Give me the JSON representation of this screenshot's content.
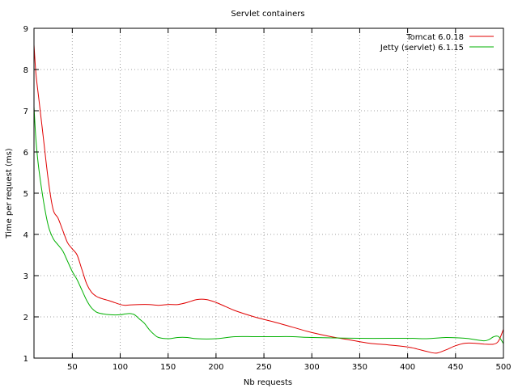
{
  "chart_data": {
    "type": "line",
    "title": "Servlet containers",
    "xlabel": "Nb requests",
    "ylabel": "Time per request (ms)",
    "xlim": [
      10,
      500
    ],
    "ylim": [
      1,
      9
    ],
    "xticks": [
      50,
      100,
      150,
      200,
      250,
      300,
      350,
      400,
      450,
      500
    ],
    "yticks": [
      1,
      2,
      3,
      4,
      5,
      6,
      7,
      8,
      9
    ],
    "grid": true,
    "legend_position": "top-right",
    "series": [
      {
        "name": "Tomcat 6.0.18",
        "color": "#e00000",
        "x": [
          10,
          12,
          15,
          20,
          25,
          30,
          35,
          40,
          45,
          50,
          55,
          60,
          65,
          70,
          75,
          80,
          90,
          100,
          105,
          110,
          120,
          130,
          140,
          150,
          160,
          170,
          180,
          190,
          200,
          210,
          220,
          240,
          260,
          280,
          300,
          320,
          340,
          360,
          380,
          400,
          410,
          420,
          430,
          440,
          450,
          460,
          470,
          480,
          490,
          495,
          500
        ],
        "y": [
          8.6,
          7.9,
          7.3,
          6.3,
          5.3,
          4.6,
          4.4,
          4.1,
          3.8,
          3.65,
          3.5,
          3.15,
          2.8,
          2.6,
          2.5,
          2.45,
          2.38,
          2.3,
          2.28,
          2.29,
          2.3,
          2.3,
          2.28,
          2.3,
          2.3,
          2.35,
          2.42,
          2.42,
          2.35,
          2.25,
          2.15,
          2.0,
          1.88,
          1.75,
          1.62,
          1.52,
          1.44,
          1.36,
          1.32,
          1.27,
          1.22,
          1.16,
          1.12,
          1.2,
          1.3,
          1.36,
          1.36,
          1.34,
          1.34,
          1.42,
          1.7
        ]
      },
      {
        "name": "Jetty (servlet) 6.1.15",
        "color": "#00b000",
        "x": [
          10,
          12,
          15,
          20,
          25,
          30,
          35,
          40,
          45,
          50,
          55,
          60,
          65,
          70,
          75,
          80,
          90,
          100,
          105,
          110,
          115,
          120,
          125,
          130,
          135,
          140,
          150,
          160,
          170,
          180,
          200,
          220,
          240,
          260,
          280,
          300,
          350,
          400,
          420,
          440,
          460,
          470,
          480,
          485,
          490,
          495,
          500
        ],
        "y": [
          7.1,
          6.3,
          5.6,
          4.8,
          4.2,
          3.9,
          3.75,
          3.6,
          3.35,
          3.1,
          2.9,
          2.65,
          2.4,
          2.22,
          2.12,
          2.08,
          2.05,
          2.05,
          2.07,
          2.08,
          2.05,
          1.95,
          1.85,
          1.7,
          1.58,
          1.5,
          1.47,
          1.5,
          1.5,
          1.47,
          1.47,
          1.52,
          1.52,
          1.52,
          1.52,
          1.5,
          1.48,
          1.48,
          1.47,
          1.5,
          1.48,
          1.45,
          1.42,
          1.45,
          1.52,
          1.52,
          1.35
        ]
      }
    ]
  }
}
